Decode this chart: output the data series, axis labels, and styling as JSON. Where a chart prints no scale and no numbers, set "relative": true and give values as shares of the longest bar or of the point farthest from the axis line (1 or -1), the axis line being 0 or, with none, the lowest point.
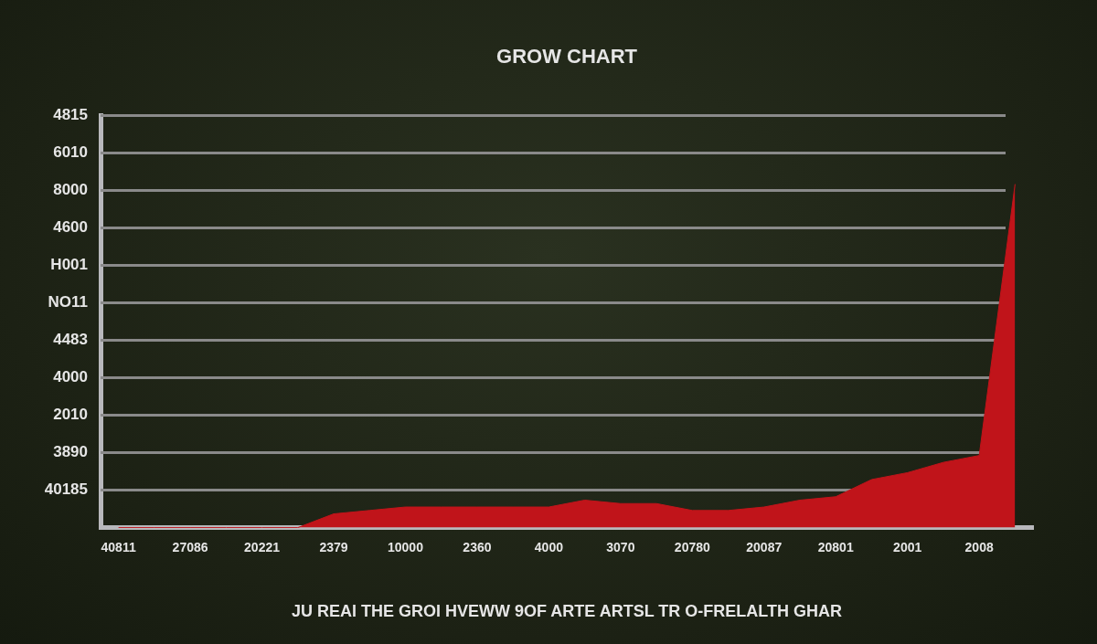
{
  "chart_data": {
    "type": "area",
    "title": "GROW CHART",
    "xlabel": "JU REAI THE GROI HVEWW 9OF ARTE ARTSL TR O-FRELALTH GHAR",
    "categories": [
      "40811",
      null,
      "27086",
      null,
      "20221",
      null,
      "2379",
      null,
      "10000",
      null,
      "2360",
      null,
      "4000",
      null,
      "3070",
      null,
      "20780",
      null,
      "20087",
      null,
      "20801",
      null,
      "2001",
      null,
      "2008",
      null
    ],
    "values": [
      0,
      0,
      0,
      0,
      0,
      0,
      0.04,
      0.05,
      0.06,
      0.06,
      0.06,
      0.06,
      0.06,
      0.08,
      0.07,
      0.07,
      0.05,
      0.05,
      0.06,
      0.08,
      0.09,
      0.14,
      0.16,
      0.19,
      0.21,
      1
    ],
    "color": "#c0141a",
    "relative": true,
    "annotations": [
      "4815",
      "6010",
      "8000",
      "4600",
      "H001",
      "NO11",
      "4483",
      "4000",
      "2010",
      "3890",
      "40185"
    ]
  }
}
